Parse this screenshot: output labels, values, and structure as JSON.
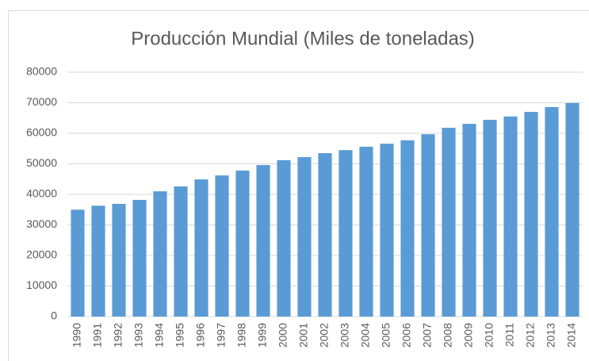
{
  "chart_data": {
    "type": "bar",
    "title": "Producción Mundial  (Miles de toneladas)",
    "categories": [
      "1990",
      "1991",
      "1992",
      "1993",
      "1994",
      "1995",
      "1996",
      "1997",
      "1998",
      "1999",
      "2000",
      "2001",
      "2002",
      "2003",
      "2004",
      "2005",
      "2006",
      "2007",
      "2008",
      "2009",
      "2010",
      "2011",
      "2012",
      "2013",
      "2014"
    ],
    "values": [
      35000,
      36300,
      36900,
      38200,
      41000,
      42600,
      44900,
      46200,
      47800,
      49600,
      51200,
      52200,
      53500,
      54500,
      55600,
      56600,
      57700,
      59700,
      61800,
      63100,
      64400,
      65500,
      67000,
      68600,
      69900
    ],
    "color": "#5b9bd5",
    "ylim": [
      0,
      80000
    ],
    "yticks": [
      0,
      10000,
      20000,
      30000,
      40000,
      50000,
      60000,
      70000,
      80000
    ],
    "grid": true
  }
}
